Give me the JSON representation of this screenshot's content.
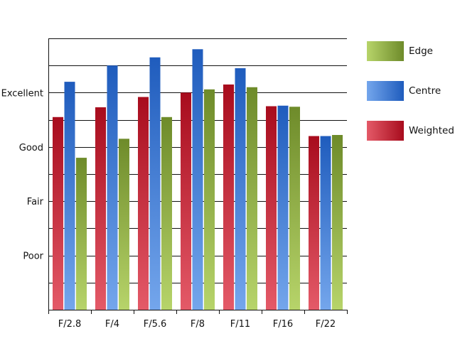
{
  "chart_data": {
    "type": "bar",
    "categories": [
      "F/2.8",
      "F/4",
      "F/5.6",
      "F/8",
      "F/11",
      "F/16",
      "F/22"
    ],
    "series": [
      {
        "name": "Weighted",
        "key": "weighted",
        "values": [
          3.55,
          3.73,
          3.92,
          4.0,
          4.15,
          3.75,
          3.2
        ],
        "colors": [
          "#e45a68",
          "#a80c1d"
        ]
      },
      {
        "name": "Centre",
        "key": "centre",
        "values": [
          4.2,
          4.5,
          4.65,
          4.8,
          4.45,
          3.76,
          3.2
        ],
        "colors": [
          "#74a6ec",
          "#1f5cbd"
        ]
      },
      {
        "name": "Edge",
        "key": "edge",
        "values": [
          2.8,
          3.15,
          3.55,
          4.06,
          4.1,
          3.74,
          3.22
        ],
        "colors": [
          "#b7d46a",
          "#6e8b2a"
        ]
      }
    ],
    "y_ticks": [
      {
        "value": 1,
        "label": "Poor"
      },
      {
        "value": 2,
        "label": "Fair"
      },
      {
        "value": 3,
        "label": "Good"
      },
      {
        "value": 4,
        "label": "Excellent"
      }
    ],
    "ylim": [
      0,
      5
    ],
    "ystep": 0.5,
    "grid": true,
    "legend": {
      "position": "right",
      "entries": [
        {
          "label": "Edge",
          "colors": [
            "#b7d46a",
            "#6e8b2a"
          ]
        },
        {
          "label": "Centre",
          "colors": [
            "#74a6ec",
            "#1f5cbd"
          ]
        },
        {
          "label": "Weighted",
          "colors": [
            "#e45a68",
            "#a80c1d"
          ]
        }
      ]
    },
    "title": "",
    "xlabel": "",
    "ylabel": ""
  }
}
